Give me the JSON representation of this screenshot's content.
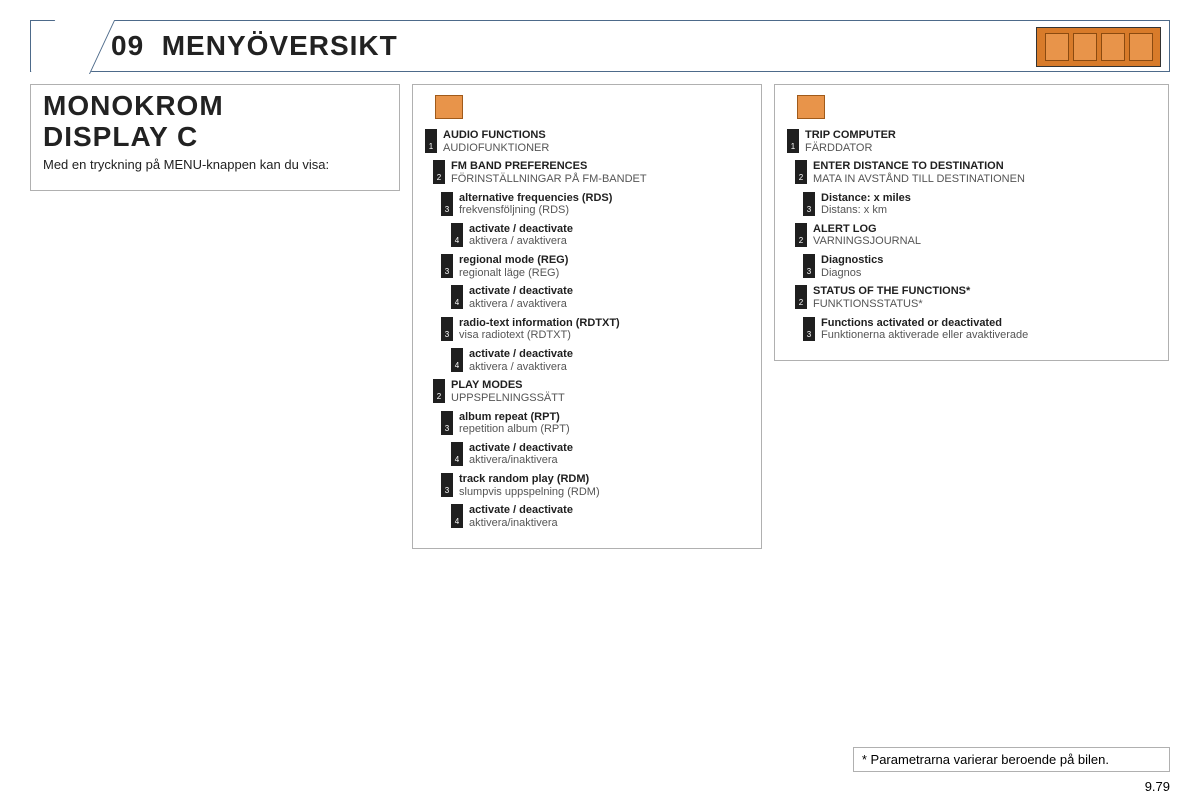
{
  "header": {
    "number": "09",
    "title": "MENYÖVERSIKT"
  },
  "left": {
    "heading_line1": "MONOKROM",
    "heading_line2": "DISPLAY C",
    "para": "Med en tryckning på MENU-knappen kan du visa:"
  },
  "col_mid": [
    {
      "level": 1,
      "indent": 1,
      "title": "AUDIO FUNCTIONS",
      "sub": "AUDIOFUNKTIONER"
    },
    {
      "level": 2,
      "indent": 2,
      "title": "FM BAND PREFERENCES",
      "sub": "FÖRINSTÄLLNINGAR PÅ FM-BANDET"
    },
    {
      "level": 3,
      "indent": 3,
      "title": "alternative frequencies (RDS)",
      "sub": "frekvensföljning (RDS)"
    },
    {
      "level": 4,
      "indent": 4,
      "title": "activate / deactivate",
      "sub": "aktivera / avaktivera"
    },
    {
      "level": 3,
      "indent": 3,
      "title": "regional mode (REG)",
      "sub": "regionalt läge (REG)"
    },
    {
      "level": 4,
      "indent": 4,
      "title": "activate / deactivate",
      "sub": "aktivera / avaktivera"
    },
    {
      "level": 3,
      "indent": 3,
      "title": "radio-text information (RDTXT)",
      "sub": "visa radiotext (RDTXT)"
    },
    {
      "level": 4,
      "indent": 4,
      "title": "activate / deactivate",
      "sub": "aktivera / avaktivera"
    },
    {
      "level": 2,
      "indent": 2,
      "title": "PLAY MODES",
      "sub": "UPPSPELNINGSSÄTT"
    },
    {
      "level": 3,
      "indent": 3,
      "title": "album repeat (RPT)",
      "sub": "repetition album (RPT)"
    },
    {
      "level": 4,
      "indent": 4,
      "title": "activate / deactivate",
      "sub": "aktivera/inaktivera"
    },
    {
      "level": 3,
      "indent": 3,
      "title": "track random play (RDM)",
      "sub": "slumpvis uppspelning (RDM)"
    },
    {
      "level": 4,
      "indent": 4,
      "title": "activate / deactivate",
      "sub": "aktivera/inaktivera"
    }
  ],
  "col_right": [
    {
      "level": 1,
      "indent": 1,
      "title": "TRIP COMPUTER",
      "sub": "FÄRDDATOR"
    },
    {
      "level": 2,
      "indent": 2,
      "title": "ENTER DISTANCE TO DESTINATION",
      "sub": "MATA IN AVSTÅND TILL DESTINATIONEN"
    },
    {
      "level": 3,
      "indent": 3,
      "title": "Distance: x miles",
      "sub": "Distans: x km"
    },
    {
      "level": 2,
      "indent": 2,
      "title": "ALERT LOG",
      "sub": "VARNINGSJOURNAL"
    },
    {
      "level": 3,
      "indent": 3,
      "title": "Diagnostics",
      "sub": "Diagnos"
    },
    {
      "level": 2,
      "indent": 2,
      "title": "STATUS OF THE FUNCTIONS*",
      "sub": "FUNKTIONSSTATUS*"
    },
    {
      "level": 3,
      "indent": 3,
      "title": "Functions activated or deactivated",
      "sub": "Funktionerna aktiverade eller avaktiverade"
    }
  ],
  "footnote": "* Parametrarna varierar beroende på bilen.",
  "page": "9.79"
}
